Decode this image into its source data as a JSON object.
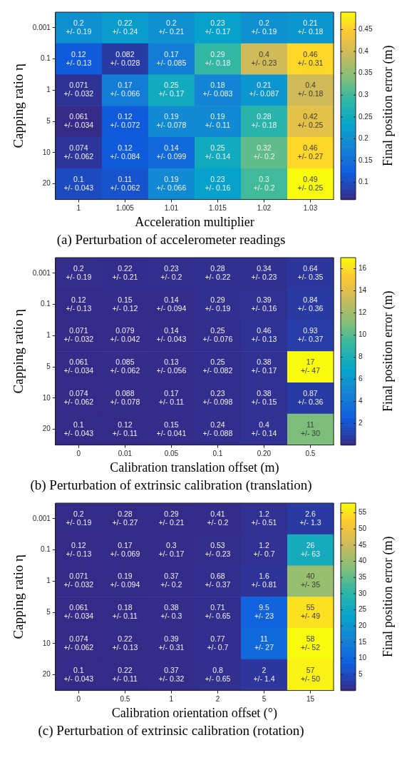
{
  "chart_data": [
    {
      "type": "heatmap",
      "title": "(a) Perturbation of accelerometer readings",
      "xlabel": "Acceleration multiplier",
      "ylabel": "Capping ratio η",
      "clabel": "Final position error (m)",
      "categories": [
        "1",
        "1.005",
        "1.01",
        "1.015",
        "1.02",
        "1.03"
      ],
      "y_categories": [
        "0.001",
        "0.1",
        "1",
        "5",
        "10",
        "20"
      ],
      "cells": [
        [
          0.2,
          0.22,
          0.2,
          0.23,
          0.2,
          0.21
        ],
        [
          0.12,
          0.082,
          0.17,
          0.29,
          0.4,
          0.46
        ],
        [
          0.071,
          0.17,
          0.25,
          0.18,
          0.21,
          0.4
        ],
        [
          0.061,
          0.12,
          0.19,
          0.19,
          0.28,
          0.42
        ],
        [
          0.074,
          0.12,
          0.14,
          0.25,
          0.32,
          0.46
        ],
        [
          0.1,
          0.11,
          0.19,
          0.23,
          0.3,
          0.49
        ]
      ],
      "cell_labels": [
        [
          "0.2\n+/- 0.19",
          "0.22\n+/- 0.24",
          "0.2\n+/- 0.21",
          "0.23\n+/- 0.17",
          "0.2\n+/- 0.19",
          "0.21\n+/- 0.18"
        ],
        [
          "0.12\n+/- 0.13",
          "0.082\n+/- 0.028",
          "0.17\n+/- 0.085",
          "0.29\n+/- 0.18",
          "0.4\n+/- 0.23",
          "0.46\n+/- 0.31"
        ],
        [
          "0.071\n+/- 0.032",
          "0.17\n+/- 0.066",
          "0.25\n+/- 0.17",
          "0.18\n+/- 0.083",
          "0.21\n+/- 0.087",
          "0.4\n+/- 0.18"
        ],
        [
          "0.061\n+/- 0.034",
          "0.12\n+/- 0.072",
          "0.19\n+/- 0.078",
          "0.19\n+/- 0.11",
          "0.28\n+/- 0.18",
          "0.42\n+/- 0.25"
        ],
        [
          "0.074\n+/- 0.062",
          "0.12\n+/- 0.084",
          "0.14\n+/- 0.099",
          "0.25\n+/- 0.14",
          "0.32\n+/- 0.2",
          "0.46\n+/- 0.27"
        ],
        [
          "0.1\n+/- 0.043",
          "0.11\n+/- 0.062",
          "0.19\n+/- 0.066",
          "0.23\n+/- 0.16",
          "0.3\n+/- 0.2",
          "0.49\n+/- 0.25"
        ]
      ],
      "clim": [
        0.061,
        0.49
      ],
      "cticks": [
        0.1,
        0.15,
        0.2,
        0.25,
        0.3,
        0.35,
        0.4,
        0.45
      ]
    },
    {
      "type": "heatmap",
      "title": "(b) Perturbation of extrinsic calibration (translation)",
      "xlabel": "Calibration translation offset (m)",
      "ylabel": "Capping ratio η",
      "clabel": "Final position error (m)",
      "categories": [
        "0",
        "0.01",
        "0.05",
        "0.1",
        "0.20",
        "0.5"
      ],
      "y_categories": [
        "0.001",
        "0.1",
        "1",
        "5",
        "10",
        "20"
      ],
      "cells": [
        [
          0.2,
          0.22,
          0.23,
          0.28,
          0.34,
          0.64
        ],
        [
          0.12,
          0.15,
          0.14,
          0.29,
          0.39,
          0.84
        ],
        [
          0.071,
          0.079,
          0.14,
          0.25,
          0.46,
          0.93
        ],
        [
          0.061,
          0.085,
          0.13,
          0.25,
          0.38,
          17
        ],
        [
          0.074,
          0.088,
          0.17,
          0.23,
          0.38,
          0.87
        ],
        [
          0.1,
          0.12,
          0.15,
          0.24,
          0.4,
          11
        ]
      ],
      "cell_labels": [
        [
          "0.2\n+/- 0.19",
          "0.22\n+/- 0.21",
          "0.23\n+/- 0.2",
          "0.28\n+/- 0.22",
          "0.34\n+/- 0.23",
          "0.64\n+/- 0.35"
        ],
        [
          "0.12\n+/- 0.13",
          "0.15\n+/- 0.12",
          "0.14\n+/- 0.094",
          "0.29\n+/- 0.19",
          "0.39\n+/- 0.16",
          "0.84\n+/- 0.36"
        ],
        [
          "0.071\n+/- 0.032",
          "0.079\n+/- 0.042",
          "0.14\n+/- 0.043",
          "0.25\n+/- 0.076",
          "0.46\n+/- 0.13",
          "0.93\n+/- 0.37"
        ],
        [
          "0.061\n+/- 0.034",
          "0.085\n+/- 0.062",
          "0.13\n+/- 0.056",
          "0.25\n+/- 0.082",
          "0.38\n+/- 0.17",
          "17\n+/- 47"
        ],
        [
          "0.074\n+/- 0.062",
          "0.088\n+/- 0.078",
          "0.17\n+/- 0.11",
          "0.23\n+/- 0.098",
          "0.38\n+/- 0.15",
          "0.87\n+/- 0.36"
        ],
        [
          "0.1\n+/- 0.043",
          "0.12\n+/- 0.11",
          "0.15\n+/- 0.041",
          "0.24\n+/- 0.088",
          "0.4\n+/- 0.14",
          "11\n+/- 30"
        ]
      ],
      "clim": [
        0.061,
        17
      ],
      "cticks": [
        2,
        4,
        6,
        8,
        10,
        12,
        14,
        16
      ]
    },
    {
      "type": "heatmap",
      "title": "(c) Perturbation of extrinsic calibration (rotation)",
      "xlabel": "Calibration orientation offset (°)",
      "ylabel": "Capping ratio η",
      "clabel": "Final position error (m)",
      "categories": [
        "0",
        "0.5",
        "1",
        "2",
        "5",
        "15"
      ],
      "y_categories": [
        "0.001",
        "0.1",
        "1",
        "5",
        "10",
        "20"
      ],
      "cells": [
        [
          0.2,
          0.28,
          0.29,
          0.41,
          1.2,
          2.6
        ],
        [
          0.12,
          0.17,
          0.3,
          0.53,
          1.2,
          26
        ],
        [
          0.071,
          0.19,
          0.37,
          0.68,
          1.6,
          40
        ],
        [
          0.061,
          0.18,
          0.38,
          0.71,
          9.5,
          55
        ],
        [
          0.074,
          0.22,
          0.39,
          0.77,
          11,
          58
        ],
        [
          0.1,
          0.22,
          0.37,
          0.8,
          2,
          57
        ]
      ],
      "cell_labels": [
        [
          "0.2\n+/- 0.19",
          "0.28\n+/- 0.27",
          "0.29\n+/- 0.21",
          "0.41\n+/- 0.2",
          "1.2\n+/- 0.51",
          "2.6\n+/- 1.3"
        ],
        [
          "0.12\n+/- 0.13",
          "0.17\n+/- 0.069",
          "0.3\n+/- 0.17",
          "0.53\n+/- 0.23",
          "1.2\n+/- 0.7",
          "26\n+/- 63"
        ],
        [
          "0.071\n+/- 0.032",
          "0.19\n+/- 0.094",
          "0.37\n+/- 0.2",
          "0.68\n+/- 0.37",
          "1.6\n+/- 0.81",
          "40\n+/- 35"
        ],
        [
          "0.061\n+/- 0.034",
          "0.18\n+/- 0.11",
          "0.38\n+/- 0.3",
          "0.71\n+/- 0.65",
          "9.5\n+/- 23",
          "55\n+/- 49"
        ],
        [
          "0.074\n+/- 0.062",
          "0.22\n+/- 0.13",
          "0.39\n+/- 0.31",
          "0.77\n+/- 0.7",
          "11\n+/- 27",
          "58\n+/- 52"
        ],
        [
          "0.1\n+/- 0.043",
          "0.22\n+/- 0.11",
          "0.37\n+/- 0.32",
          "0.8\n+/- 0.65",
          "2\n+/- 1.4",
          "57\n+/- 50"
        ]
      ],
      "clim": [
        0.061,
        58
      ],
      "cticks": [
        5,
        10,
        15,
        20,
        25,
        30,
        35,
        40,
        45,
        50,
        55
      ]
    }
  ]
}
